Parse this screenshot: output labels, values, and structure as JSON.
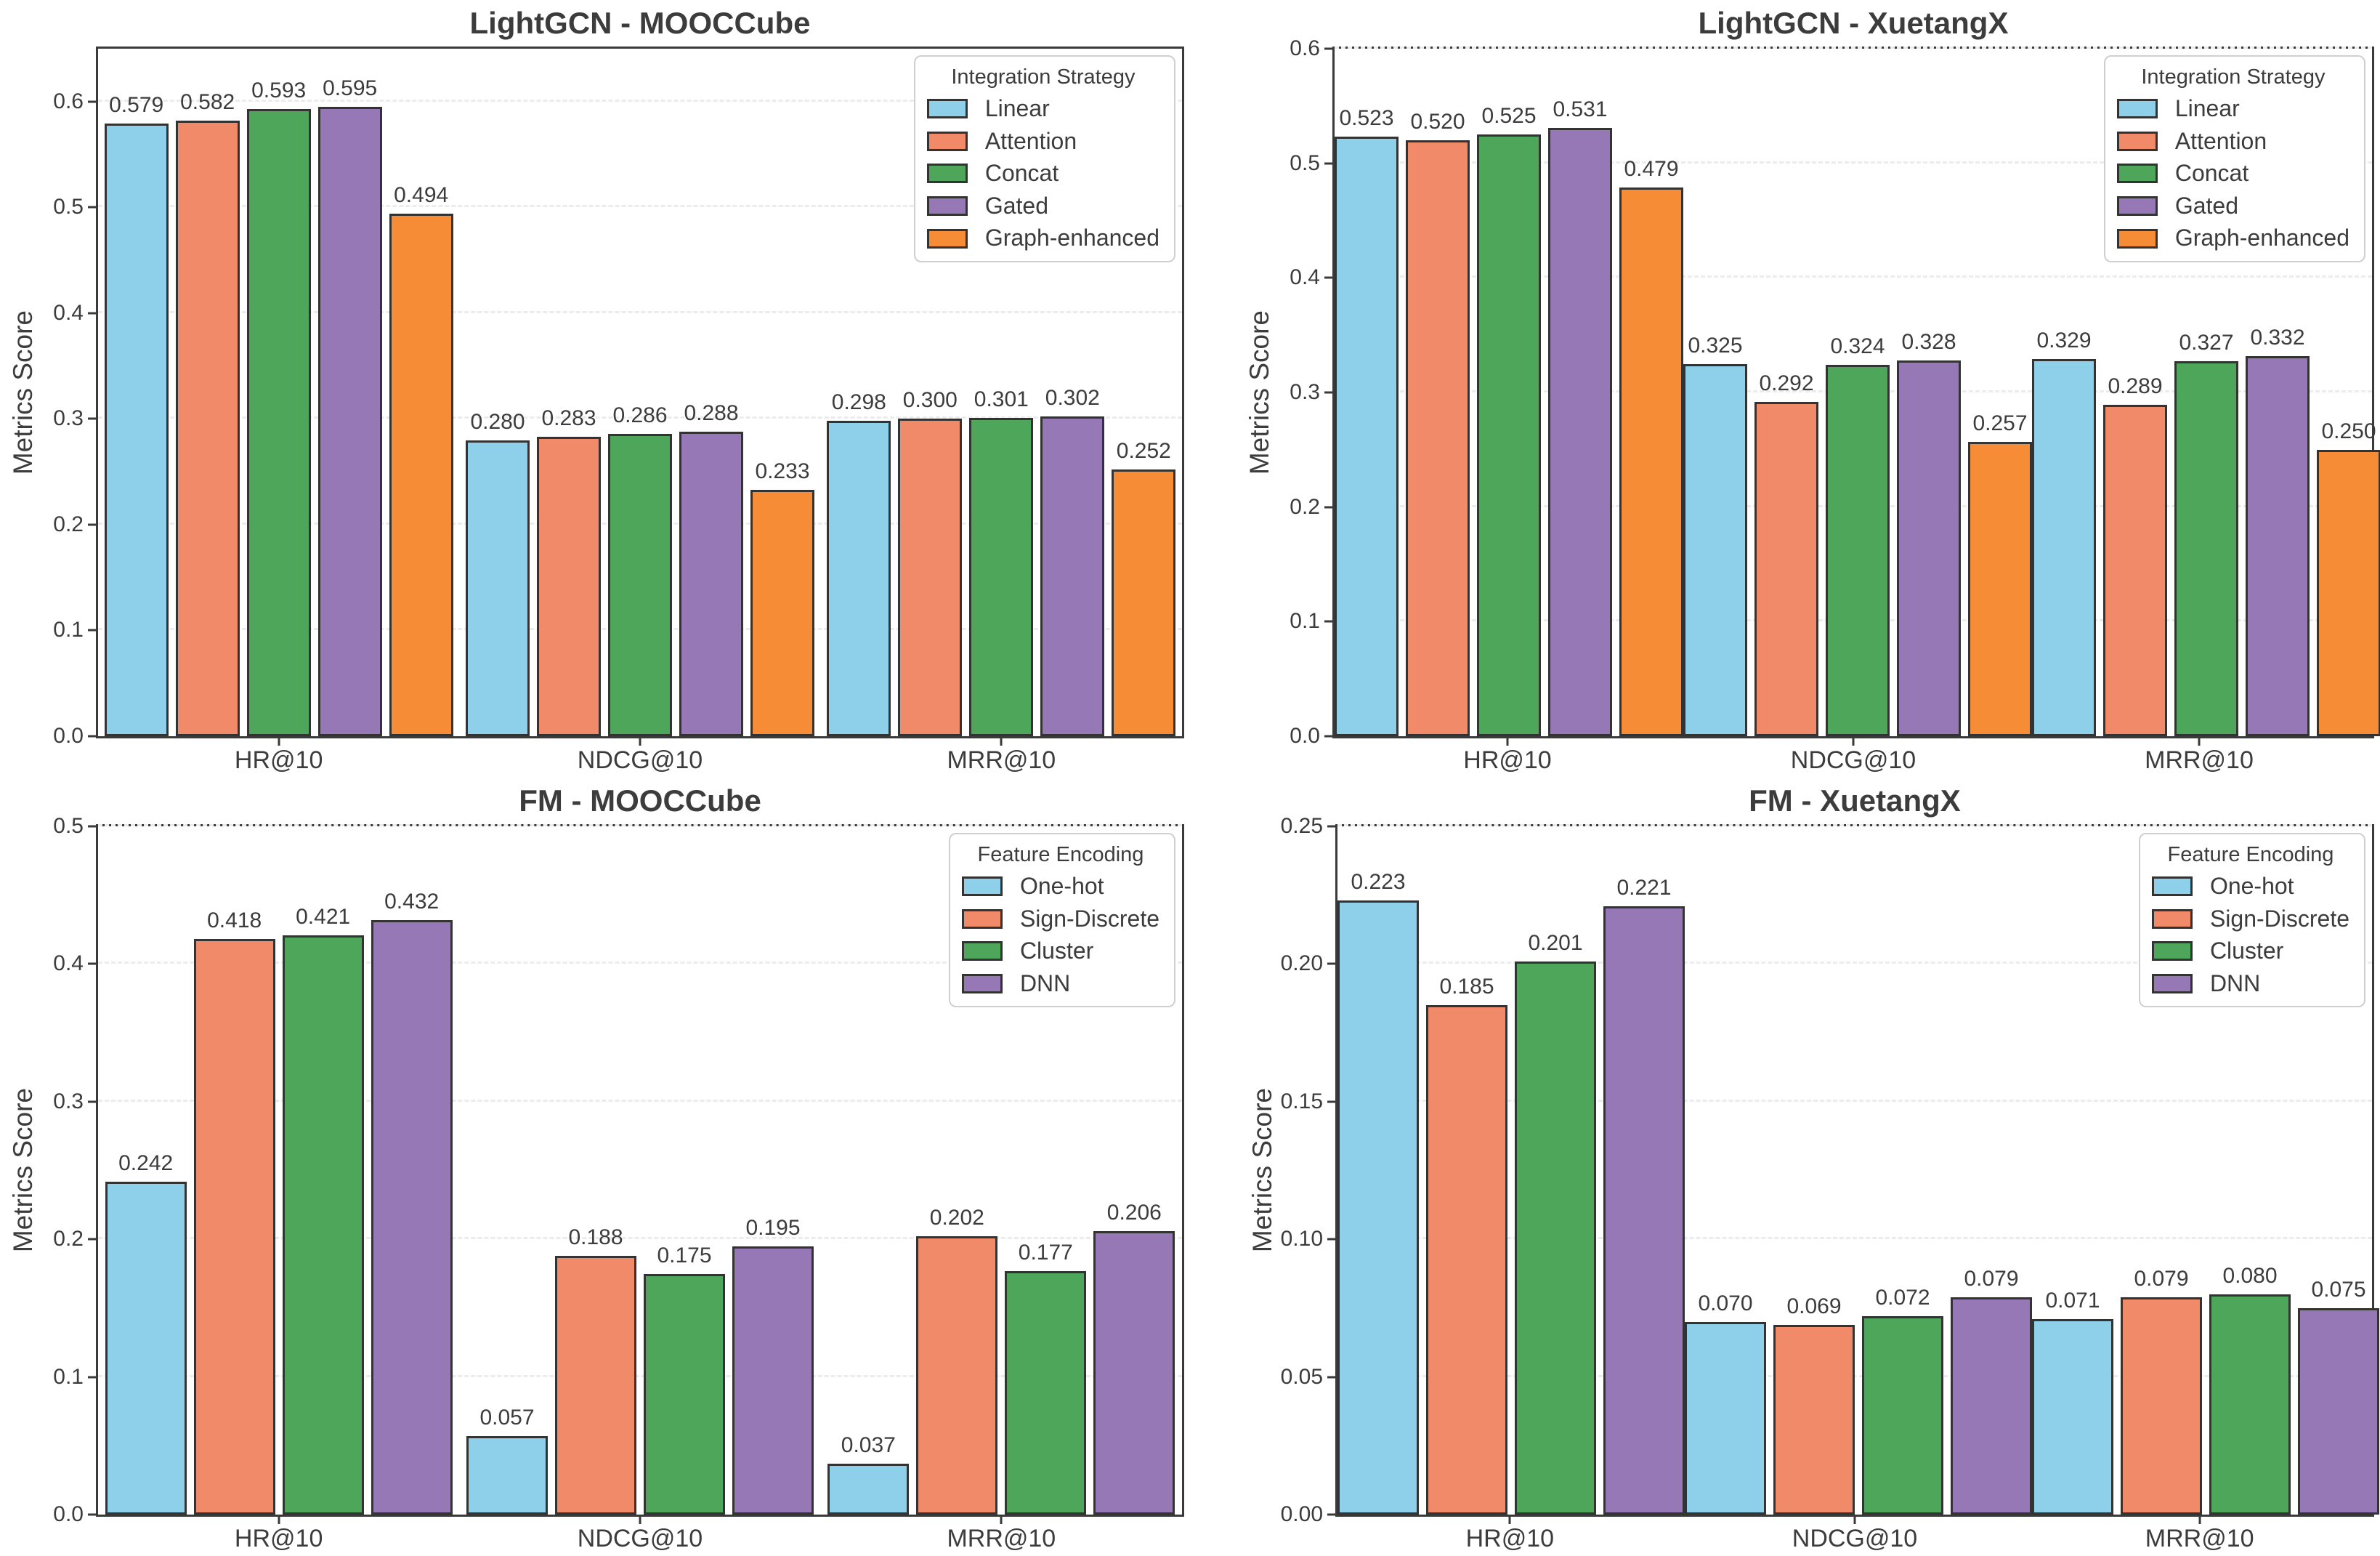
{
  "page": {
    "background": "#ffffff",
    "text_color": "#3c3c3c",
    "grid_color": "#ececec",
    "spine_color": "#3a3a3a",
    "bar_edge_color": "#333333"
  },
  "chart_data": [
    {
      "type": "bar",
      "title": "LightGCN - MOOCCube",
      "ylabel": "Metrics Score",
      "xlabel": "",
      "legend_title": "Integration Strategy",
      "legend_position": "upper right",
      "grid": "horizontal dashed",
      "categories": [
        "HR@10",
        "NDCG@10",
        "MRR@10"
      ],
      "series": [
        {
          "name": "Linear",
          "color": "#8ed0ea",
          "values": [
            0.579,
            0.28,
            0.298
          ]
        },
        {
          "name": "Attention",
          "color": "#f18a68",
          "values": [
            0.582,
            0.283,
            0.3
          ]
        },
        {
          "name": "Concat",
          "color": "#4da65a",
          "values": [
            0.593,
            0.286,
            0.301
          ]
        },
        {
          "name": "Gated",
          "color": "#9778b7",
          "values": [
            0.595,
            0.288,
            0.302
          ]
        },
        {
          "name": "Graph-enhanced",
          "color": "#f68c35",
          "values": [
            0.494,
            0.233,
            0.252
          ]
        }
      ],
      "ylim": [
        0,
        0.65
      ],
      "yticks": [
        0,
        0.1,
        0.2,
        0.3,
        0.4,
        0.5,
        0.6
      ],
      "ytick_labels": [
        "0.0",
        "0.1",
        "0.2",
        "0.3",
        "0.4",
        "0.5",
        "0.6"
      ],
      "value_label_decimals": 3
    },
    {
      "type": "bar",
      "title": "LightGCN - XuetangX",
      "ylabel": "Metrics Score",
      "xlabel": "",
      "legend_title": "Integration Strategy",
      "legend_position": "upper right",
      "grid": "horizontal dashed",
      "categories": [
        "HR@10",
        "NDCG@10",
        "MRR@10"
      ],
      "series": [
        {
          "name": "Linear",
          "color": "#8ed0ea",
          "values": [
            0.523,
            0.325,
            0.329
          ]
        },
        {
          "name": "Attention",
          "color": "#f18a68",
          "values": [
            0.52,
            0.292,
            0.289
          ]
        },
        {
          "name": "Concat",
          "color": "#4da65a",
          "values": [
            0.525,
            0.324,
            0.327
          ]
        },
        {
          "name": "Gated",
          "color": "#9778b7",
          "values": [
            0.531,
            0.328,
            0.332
          ]
        },
        {
          "name": "Graph-enhanced",
          "color": "#f68c35",
          "values": [
            0.479,
            0.257,
            0.25
          ]
        }
      ],
      "ylim": [
        0,
        0.6
      ],
      "yticks": [
        0,
        0.1,
        0.2,
        0.3,
        0.4,
        0.5,
        0.6
      ],
      "ytick_labels": [
        "0.0",
        "0.1",
        "0.2",
        "0.3",
        "0.4",
        "0.5",
        "0.6"
      ],
      "value_label_decimals": 3
    },
    {
      "type": "bar",
      "title": "FM - MOOCCube",
      "ylabel": "Metrics Score",
      "xlabel": "",
      "legend_title": "Feature Encoding",
      "legend_position": "upper right",
      "grid": "horizontal dashed",
      "categories": [
        "HR@10",
        "NDCG@10",
        "MRR@10"
      ],
      "series": [
        {
          "name": "One-hot",
          "color": "#8ed0ea",
          "values": [
            0.242,
            0.057,
            0.037
          ]
        },
        {
          "name": "Sign-Discrete",
          "color": "#f18a68",
          "values": [
            0.418,
            0.188,
            0.202
          ]
        },
        {
          "name": "Cluster",
          "color": "#4da65a",
          "values": [
            0.421,
            0.175,
            0.177
          ]
        },
        {
          "name": "DNN",
          "color": "#9778b7",
          "values": [
            0.432,
            0.195,
            0.206
          ]
        }
      ],
      "ylim": [
        0,
        0.5
      ],
      "yticks": [
        0,
        0.1,
        0.2,
        0.3,
        0.4,
        0.5
      ],
      "ytick_labels": [
        "0.0",
        "0.1",
        "0.2",
        "0.3",
        "0.4",
        "0.5"
      ],
      "value_label_decimals": 3
    },
    {
      "type": "bar",
      "title": "FM - XuetangX",
      "ylabel": "Metrics Score",
      "xlabel": "",
      "legend_title": "Feature Encoding",
      "legend_position": "upper right",
      "grid": "horizontal dashed",
      "categories": [
        "HR@10",
        "NDCG@10",
        "MRR@10"
      ],
      "series": [
        {
          "name": "One-hot",
          "color": "#8ed0ea",
          "values": [
            0.223,
            0.07,
            0.071
          ]
        },
        {
          "name": "Sign-Discrete",
          "color": "#f18a68",
          "values": [
            0.185,
            0.069,
            0.079
          ]
        },
        {
          "name": "Cluster",
          "color": "#4da65a",
          "values": [
            0.201,
            0.072,
            0.08
          ]
        },
        {
          "name": "DNN",
          "color": "#9778b7",
          "values": [
            0.221,
            0.079,
            0.075
          ]
        }
      ],
      "ylim": [
        0,
        0.25
      ],
      "yticks": [
        0,
        0.05,
        0.1,
        0.15,
        0.2,
        0.25
      ],
      "ytick_labels": [
        "0.00",
        "0.05",
        "0.10",
        "0.15",
        "0.20",
        "0.25"
      ],
      "value_label_decimals": 3
    }
  ]
}
